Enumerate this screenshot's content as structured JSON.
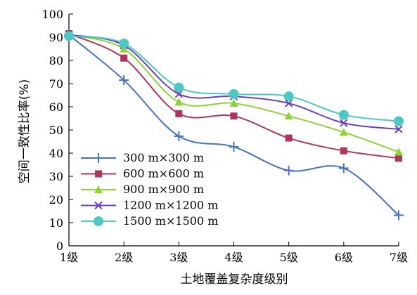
{
  "chart_data": {
    "type": "line",
    "xlabel": "土地覆盖复杂度级别",
    "ylabel": "空间一致性比率(%)",
    "categories": [
      "1级",
      "2级",
      "3级",
      "4级",
      "5级",
      "6级",
      "7级"
    ],
    "ylim": [
      0,
      100
    ],
    "yticks": [
      0,
      10,
      20,
      30,
      40,
      50,
      60,
      70,
      80,
      90,
      100
    ],
    "grid": false,
    "legend_position": "bottom-left",
    "series": [
      {
        "name": "300 m×300 m",
        "color": "#4472C4",
        "marker": "plus",
        "values": [
          91.0,
          71.5,
          47.3,
          42.7,
          32.5,
          33.5,
          13.2
        ]
      },
      {
        "name": "600 m×600 m",
        "color": "#B0345F",
        "marker": "square",
        "values": [
          91.5,
          81.0,
          57.0,
          56.0,
          46.5,
          41.0,
          37.8
        ]
      },
      {
        "name": "900 m×900 m",
        "color": "#8CD334",
        "marker": "triangle",
        "values": [
          91.0,
          85.0,
          62.0,
          61.5,
          56.0,
          49.0,
          40.5
        ]
      },
      {
        "name": "1200 m×1200 m",
        "color": "#6A3FC4",
        "marker": "x",
        "values": [
          91.0,
          86.5,
          65.5,
          64.5,
          61.5,
          53.0,
          50.3
        ]
      },
      {
        "name": "1500 m×1500 m",
        "color": "#4DC7C2",
        "marker": "circle",
        "values": [
          90.5,
          87.3,
          68.3,
          65.5,
          64.5,
          56.5,
          53.8
        ]
      }
    ]
  }
}
